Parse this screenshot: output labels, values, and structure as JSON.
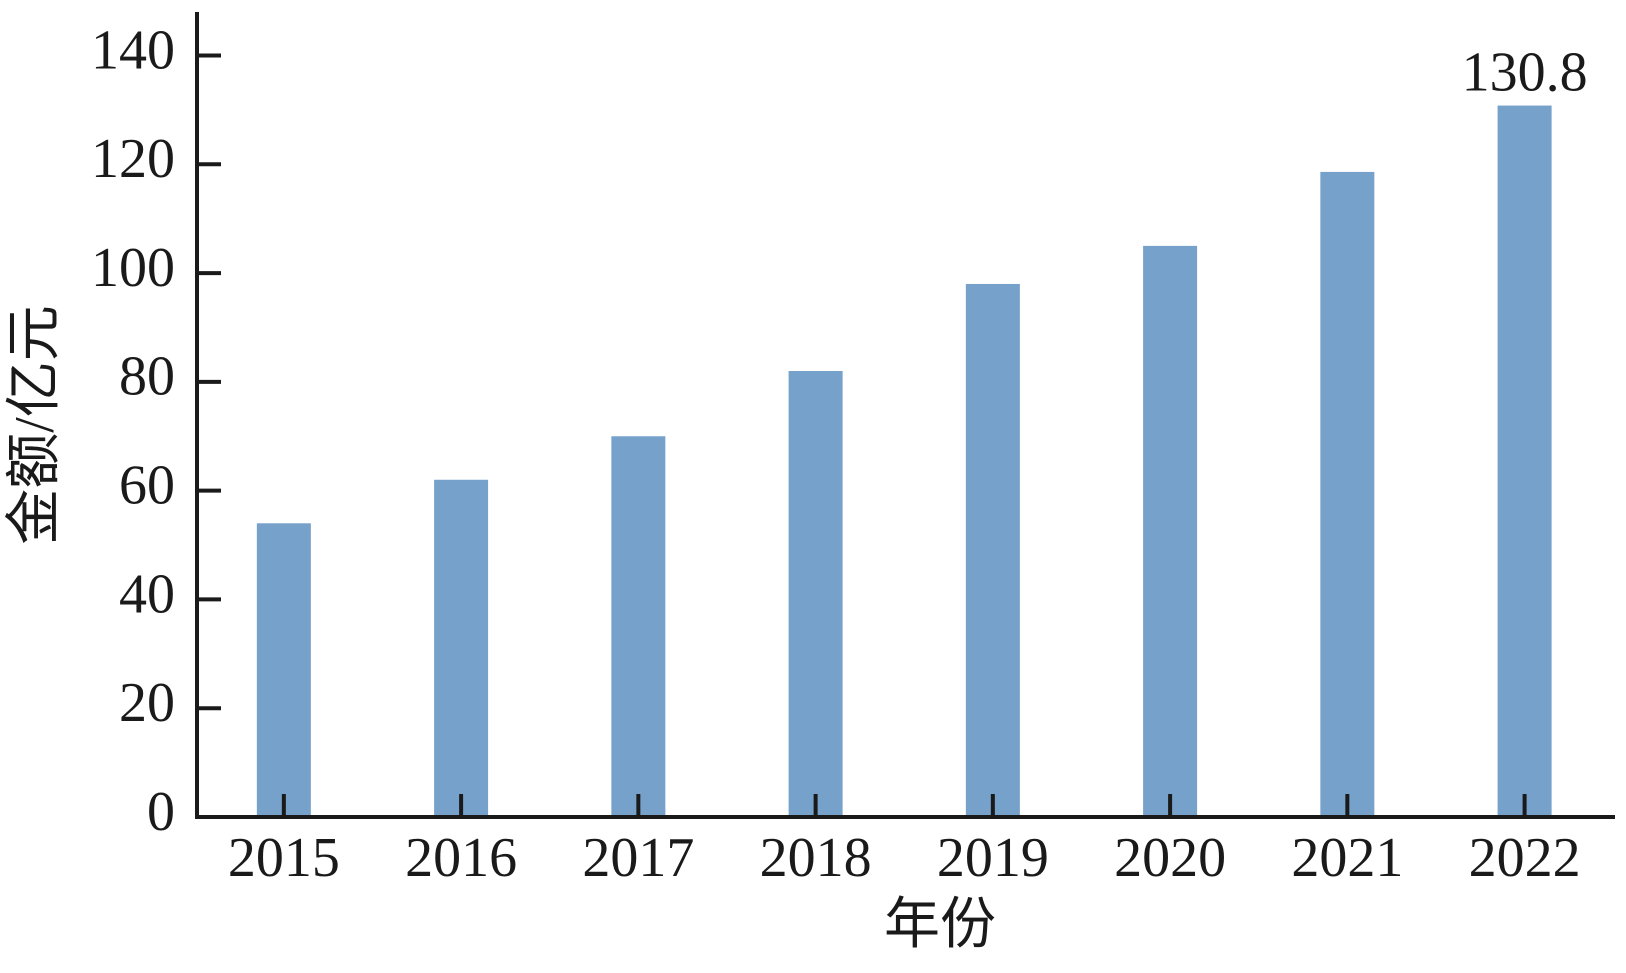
{
  "chart_data": {
    "type": "bar",
    "categories": [
      "2015",
      "2016",
      "2017",
      "2018",
      "2019",
      "2020",
      "2021",
      "2022"
    ],
    "values": [
      54,
      62,
      70,
      82,
      98,
      105,
      118.6,
      130.8
    ],
    "value_labels": [
      null,
      null,
      null,
      null,
      null,
      null,
      null,
      "130.8"
    ],
    "color": "#76a1cb",
    "x_label": "年份",
    "y_label": "金额/亿元",
    "ylim": [
      0,
      148
    ],
    "yticks": [
      0,
      20,
      40,
      60,
      80,
      100,
      120,
      140
    ],
    "grid": false
  }
}
